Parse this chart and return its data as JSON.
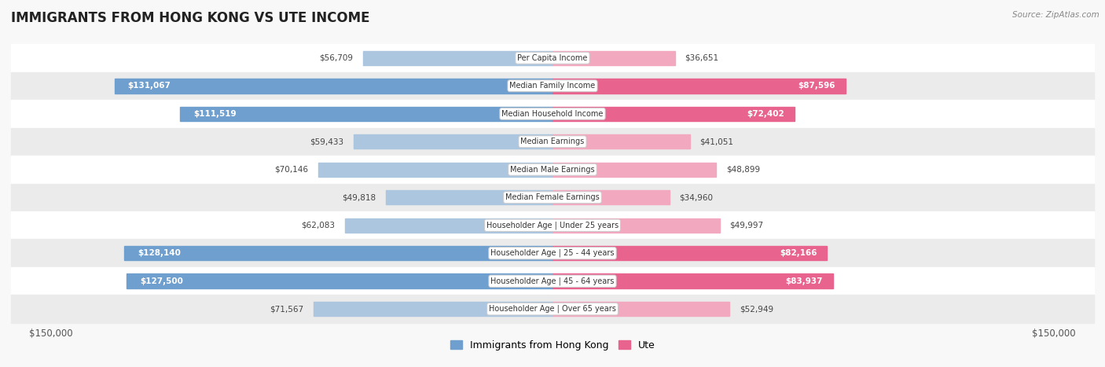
{
  "title": "IMMIGRANTS FROM HONG KONG VS UTE INCOME",
  "source": "Source: ZipAtlas.com",
  "categories": [
    "Per Capita Income",
    "Median Family Income",
    "Median Household Income",
    "Median Earnings",
    "Median Male Earnings",
    "Median Female Earnings",
    "Householder Age | Under 25 years",
    "Householder Age | 25 - 44 years",
    "Householder Age | 45 - 64 years",
    "Householder Age | Over 65 years"
  ],
  "hk_values": [
    56709,
    131067,
    111519,
    59433,
    70146,
    49818,
    62083,
    128140,
    127500,
    71567
  ],
  "ute_values": [
    36651,
    87596,
    72402,
    41051,
    48899,
    34960,
    49997,
    82166,
    83937,
    52949
  ],
  "hk_labels": [
    "$56,709",
    "$131,067",
    "$111,519",
    "$59,433",
    "$70,146",
    "$49,818",
    "$62,083",
    "$128,140",
    "$127,500",
    "$71,567"
  ],
  "ute_labels": [
    "$36,651",
    "$87,596",
    "$72,402",
    "$41,051",
    "$48,899",
    "$34,960",
    "$49,997",
    "$82,166",
    "$83,937",
    "$52,949"
  ],
  "hk_color_light": "#adc6e0",
  "hk_color_solid": "#6f9fcf",
  "ute_color_light": "#f2a8bf",
  "ute_color_solid": "#e8638e",
  "max_val": 150000,
  "bg_row_light": "#f0f0f0",
  "bg_row_dark": "#e0e0e0",
  "label_box_color": "#ffffff",
  "label_box_border": "#cccccc",
  "title_color": "#222222",
  "source_color": "#888888",
  "tick_color": "#555555"
}
